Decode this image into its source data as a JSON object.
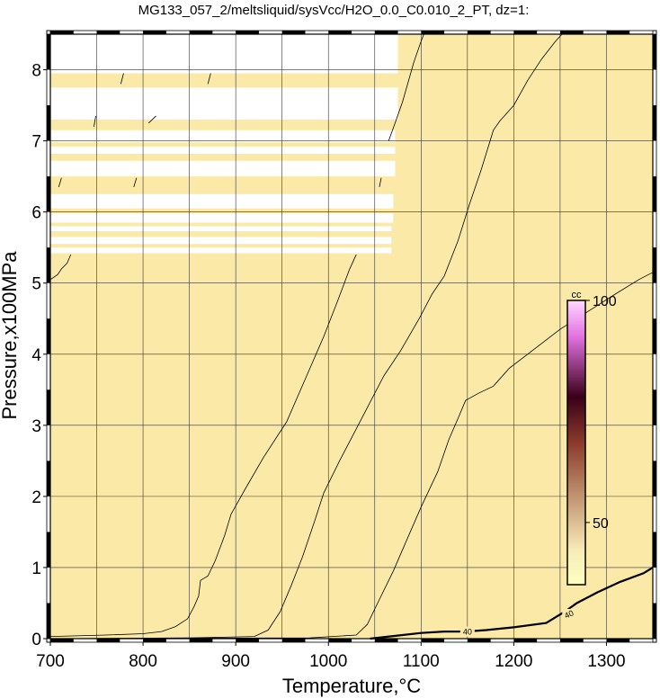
{
  "chart_data": {
    "type": "contour",
    "title": "MG133_057_2/meltsliquid/sysVcc/H2O_0.0_C0.010_2_PT, dz=1:",
    "xlabel": "Temperature,°C",
    "ylabel": "Pressure,x100MPa",
    "xlim": [
      700,
      1350
    ],
    "ylim": [
      0,
      8.5
    ],
    "x_ticks": [
      700,
      800,
      900,
      1000,
      1100,
      1200,
      1300
    ],
    "y_ticks": [
      0,
      1,
      2,
      3,
      4,
      5,
      6,
      7,
      8
    ],
    "grid": true,
    "field_color": "#fbe9a8",
    "colorbar": {
      "unit": "cc",
      "tick_labels": [
        "50",
        "100"
      ],
      "tick_values": [
        50,
        100
      ],
      "range": [
        36,
        100
      ],
      "colors": [
        "#ffffc0",
        "#f8ecb8",
        "#8a3a2a",
        "#3a0018",
        "#e070e0",
        "#ffd8ff"
      ]
    },
    "contours": [
      {
        "level": "40",
        "labeled": true,
        "heavy": true,
        "points": [
          [
            1045,
            0.0
          ],
          [
            1080,
            0.05
          ],
          [
            1100,
            0.08
          ],
          [
            1125,
            0.1
          ],
          [
            1148,
            0.1
          ],
          [
            1170,
            0.12
          ],
          [
            1200,
            0.16
          ],
          [
            1235,
            0.22
          ],
          [
            1255,
            0.38
          ],
          [
            1268,
            0.5
          ],
          [
            1290,
            0.65
          ],
          [
            1315,
            0.8
          ],
          [
            1340,
            0.92
          ],
          [
            1350,
            1.0
          ]
        ]
      },
      {
        "level": "",
        "points": [
          [
            700,
            0.03
          ],
          [
            760,
            0.05
          ],
          [
            800,
            0.07
          ],
          [
            820,
            0.1
          ],
          [
            835,
            0.17
          ],
          [
            848,
            0.28
          ],
          [
            855,
            0.45
          ],
          [
            860,
            0.6
          ],
          [
            862,
            0.82
          ],
          [
            870,
            0.88
          ],
          [
            878,
            1.1
          ],
          [
            888,
            1.45
          ],
          [
            895,
            1.75
          ],
          [
            910,
            2.1
          ],
          [
            930,
            2.55
          ],
          [
            955,
            3.05
          ],
          [
            975,
            3.65
          ],
          [
            995,
            4.25
          ],
          [
            1010,
            4.75
          ],
          [
            1023,
            5.2
          ],
          [
            1030,
            5.4
          ]
        ]
      },
      {
        "level": "",
        "points": [
          [
            700,
            0.0
          ],
          [
            850,
            0.01
          ],
          [
            920,
            0.03
          ],
          [
            935,
            0.12
          ],
          [
            948,
            0.38
          ],
          [
            960,
            0.75
          ],
          [
            972,
            1.15
          ],
          [
            985,
            1.65
          ],
          [
            995,
            2.05
          ],
          [
            1012,
            2.5
          ],
          [
            1030,
            2.95
          ],
          [
            1050,
            3.45
          ],
          [
            1060,
            3.7
          ],
          [
            1078,
            4.05
          ],
          [
            1098,
            4.5
          ],
          [
            1112,
            4.85
          ],
          [
            1125,
            5.1
          ],
          [
            1140,
            5.6
          ],
          [
            1152,
            6.1
          ],
          [
            1165,
            6.6
          ],
          [
            1178,
            7.15
          ],
          [
            1185,
            7.28
          ],
          [
            1200,
            7.5
          ],
          [
            1215,
            7.85
          ],
          [
            1230,
            8.15
          ],
          [
            1245,
            8.4
          ],
          [
            1252,
            8.5
          ]
        ]
      },
      {
        "level": "",
        "points": [
          [
            700,
            0.0
          ],
          [
            980,
            0.01
          ],
          [
            1030,
            0.05
          ],
          [
            1042,
            0.2
          ],
          [
            1055,
            0.55
          ],
          [
            1070,
            0.95
          ],
          [
            1085,
            1.4
          ],
          [
            1100,
            1.85
          ],
          [
            1118,
            2.35
          ],
          [
            1130,
            2.8
          ],
          [
            1140,
            3.1
          ],
          [
            1148,
            3.35
          ],
          [
            1162,
            3.45
          ],
          [
            1178,
            3.55
          ],
          [
            1195,
            3.8
          ],
          [
            1220,
            4.05
          ],
          [
            1250,
            4.35
          ],
          [
            1280,
            4.6
          ],
          [
            1310,
            4.85
          ],
          [
            1335,
            5.05
          ],
          [
            1350,
            5.15
          ]
        ]
      },
      {
        "level": "",
        "points": [
          [
            1065,
            7.0
          ],
          [
            1072,
            7.25
          ],
          [
            1080,
            7.55
          ],
          [
            1092,
            8.1
          ],
          [
            1100,
            8.4
          ],
          [
            1103,
            8.5
          ]
        ]
      },
      {
        "level": "",
        "points": [
          [
            700,
            5.05
          ],
          [
            708,
            5.12
          ],
          [
            712,
            5.2
          ],
          [
            718,
            5.28
          ],
          [
            722,
            5.4
          ]
        ]
      }
    ],
    "contour_labels": [
      {
        "text": "40",
        "x": 1150,
        "y": 0.08
      },
      {
        "text": "40",
        "x": 1260,
        "y": 0.33
      }
    ],
    "missing_regions": [
      {
        "x": [
          700,
          1075
        ],
        "y": [
          7.95,
          8.5
        ]
      },
      {
        "x": [
          700,
          1075
        ],
        "y": [
          7.3,
          7.75
        ]
      },
      {
        "x": [
          700,
          1072
        ],
        "y": [
          6.98,
          7.15
        ]
      },
      {
        "x": [
          700,
          1072
        ],
        "y": [
          6.82,
          6.92
        ]
      },
      {
        "x": [
          700,
          1072
        ],
        "y": [
          6.5,
          6.72
        ]
      },
      {
        "x": [
          700,
          1070
        ],
        "y": [
          6.05,
          6.25
        ]
      },
      {
        "x": [
          700,
          1070
        ],
        "y": [
          5.85,
          5.98
        ]
      },
      {
        "x": [
          700,
          1068
        ],
        "y": [
          5.73,
          5.8
        ]
      },
      {
        "x": [
          700,
          1068
        ],
        "y": [
          5.55,
          5.65
        ]
      },
      {
        "x": [
          700,
          1068
        ],
        "y": [
          5.42,
          5.5
        ]
      }
    ],
    "stray_segments": [
      [
        [
          776,
          7.8
        ],
        [
          779,
          7.95
        ]
      ],
      [
        [
          870,
          7.8
        ],
        [
          873,
          7.95
        ]
      ],
      [
        [
          747,
          7.2
        ],
        [
          749,
          7.35
        ]
      ],
      [
        [
          806,
          7.25
        ],
        [
          814,
          7.35
        ]
      ],
      [
        [
          709,
          6.35
        ],
        [
          712,
          6.48
        ]
      ],
      [
        [
          790,
          6.35
        ],
        [
          793,
          6.48
        ]
      ],
      [
        [
          1055,
          6.35
        ],
        [
          1057,
          6.48
        ]
      ]
    ]
  }
}
